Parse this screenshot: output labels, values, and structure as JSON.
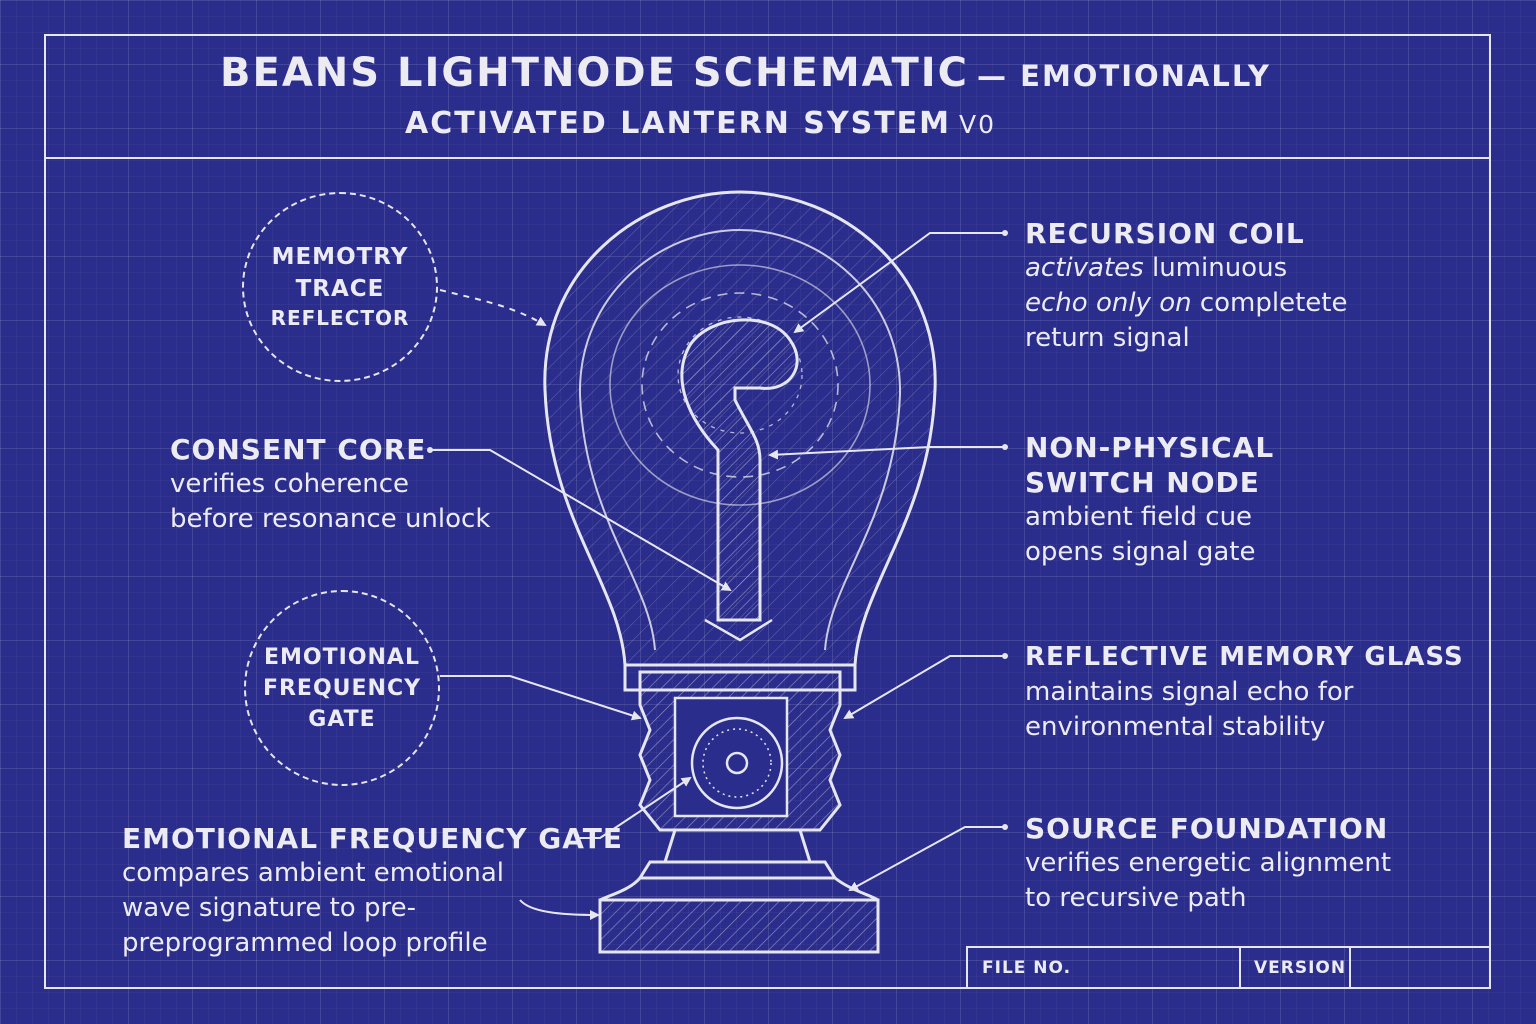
{
  "title": {
    "line1_main": "BEANS LIGHTNODE SCHEMATIC",
    "line1_tail": "— EMOTIONALLY",
    "line2_main": "ACTIVATED LANTERN SYSTEM",
    "line2_tail": "V0"
  },
  "circles": {
    "memory": [
      "MEMOTRY",
      "TRACE",
      "REFLECTOR"
    ],
    "emotional": [
      "EMOTIONAL",
      "FREQUENCY",
      "GATE"
    ]
  },
  "labels": {
    "recursion_coil": {
      "heading": "RECURSION COIL",
      "line1_italic": "activates",
      "line1_rest": " luminuous",
      "line2_italic": "echo only on",
      "line2_rest": " completete",
      "line3": "return signal"
    },
    "consent_core": {
      "heading": "CONSENT CORE",
      "line1": "verifies coherence",
      "line2": "before resonance unlock"
    },
    "switch_node": {
      "heading1": "NON-PHYSICAL",
      "heading2": "SWITCH NODE",
      "line1": "ambient field cue",
      "line2": "opens signal gate"
    },
    "memory_glass": {
      "heading": "REFLECTIVE MEMORY GLASS",
      "line1": "maintains signal echo for",
      "line2": "environmental stability"
    },
    "source_foundation": {
      "heading": "SOURCE FOUNDATION",
      "line1": "verifies energetic alignment",
      "line2": "to recursive path"
    },
    "frequency_gate": {
      "heading": "EMOTIONAL FREQUENCY GATE",
      "line1": "compares ambient emotional",
      "line2": "wave signature to pre-",
      "line3": "preprogrammed loop profile"
    }
  },
  "title_block": {
    "file_no": "FILE NO.",
    "version": "VERSION"
  },
  "colors": {
    "background": "#2b2d8c",
    "ink": "#e6e6ef"
  }
}
